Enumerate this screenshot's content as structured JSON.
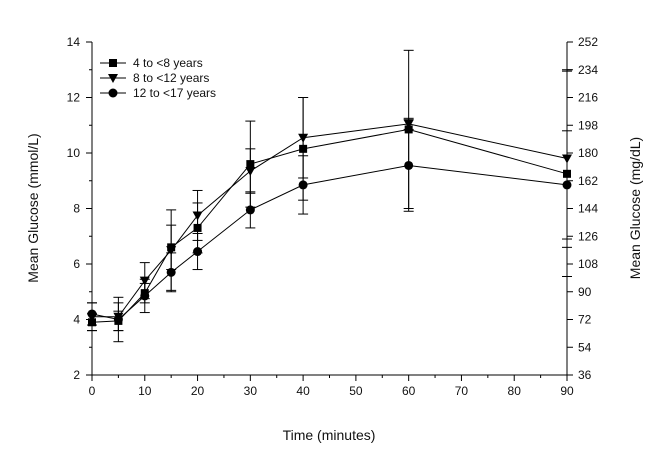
{
  "chart_data": {
    "type": "line",
    "xlabel": "Time (minutes)",
    "ylabel": "Mean Glucose (mmol/L)",
    "y2label": "Mean Glucose (mg/dL)",
    "xlim": [
      0,
      90
    ],
    "ylim": [
      2,
      14
    ],
    "y2lim": [
      36,
      252
    ],
    "xticks": [
      "0",
      "10",
      "20",
      "30",
      "40",
      "50",
      "60",
      "70",
      "80",
      "90"
    ],
    "yticks": [
      "2",
      "4",
      "6",
      "8",
      "10",
      "12",
      "14"
    ],
    "y2ticks": [
      "36",
      "54",
      "72",
      "90",
      "108",
      "126",
      "144",
      "162",
      "180",
      "198",
      "216",
      "234",
      "252"
    ],
    "legend_position": "top-left",
    "grid": false,
    "series": [
      {
        "name": "4 to <8 years",
        "marker": "square",
        "x": [
          0,
          5,
          10,
          15,
          20,
          30,
          40,
          60,
          90
        ],
        "y": [
          3.9,
          3.95,
          4.95,
          6.6,
          7.3,
          9.6,
          10.15,
          10.85,
          9.25
        ],
        "err": [
          0.3,
          0.35,
          0.35,
          0.8,
          0.9,
          1.55,
          1.85,
          2.85,
          3.7
        ]
      },
      {
        "name": "8 to <12 years",
        "marker": "triangle-down",
        "x": [
          0,
          5,
          10,
          15,
          20,
          30,
          40,
          60,
          90
        ],
        "y": [
          4.1,
          4.1,
          5.4,
          6.5,
          7.75,
          9.35,
          10.55,
          11.05,
          9.8
        ],
        "err": [
          0.5,
          0.5,
          0.65,
          1.45,
          0.9,
          0.8,
          1.45,
          0.2,
          3.2
        ]
      },
      {
        "name": "12 to <17 years",
        "marker": "circle",
        "x": [
          0,
          5,
          10,
          15,
          20,
          30,
          40,
          60,
          90
        ],
        "y": [
          4.2,
          4.0,
          4.85,
          5.7,
          6.45,
          7.95,
          8.85,
          9.55,
          8.85
        ],
        "err": [
          0.4,
          0.8,
          0.6,
          0.7,
          0.65,
          0.65,
          1.05,
          1.65,
          1.95
        ]
      }
    ]
  }
}
